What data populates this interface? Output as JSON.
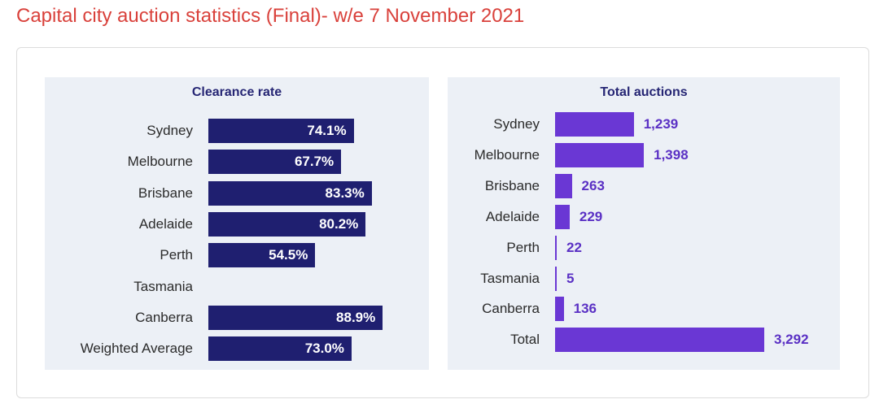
{
  "title": "Capital city auction statistics (Final)- w/e 7 November 2021",
  "colors": {
    "title": "#d9413b",
    "clearance_bar": "#1f1f70",
    "auctions_bar": "#6a37d4",
    "auctions_value": "#5a30c4",
    "panel_bg": "#ecf0f6"
  },
  "chart_data": [
    {
      "type": "bar",
      "orientation": "horizontal",
      "title": "Clearance rate",
      "categories": [
        "Sydney",
        "Melbourne",
        "Brisbane",
        "Adelaide",
        "Perth",
        "Tasmania",
        "Canberra",
        "Weighted Average"
      ],
      "values": [
        74.1,
        67.7,
        83.3,
        80.2,
        54.5,
        null,
        88.9,
        73.0
      ],
      "labels": [
        "74.1%",
        "67.7%",
        "83.3%",
        "80.2%",
        "54.5%",
        "",
        "88.9%",
        "73.0%"
      ],
      "unit": "%",
      "grid": false,
      "legend": "none"
    },
    {
      "type": "bar",
      "orientation": "horizontal",
      "title": "Total auctions",
      "categories": [
        "Sydney",
        "Melbourne",
        "Brisbane",
        "Adelaide",
        "Perth",
        "Tasmania",
        "Canberra",
        "Total"
      ],
      "values": [
        1239,
        1398,
        263,
        229,
        22,
        5,
        136,
        3292
      ],
      "labels": [
        "1,239",
        "1,398",
        "263",
        "229",
        "22",
        "5",
        "136",
        "3,292"
      ],
      "grid": false,
      "legend": "none"
    }
  ]
}
